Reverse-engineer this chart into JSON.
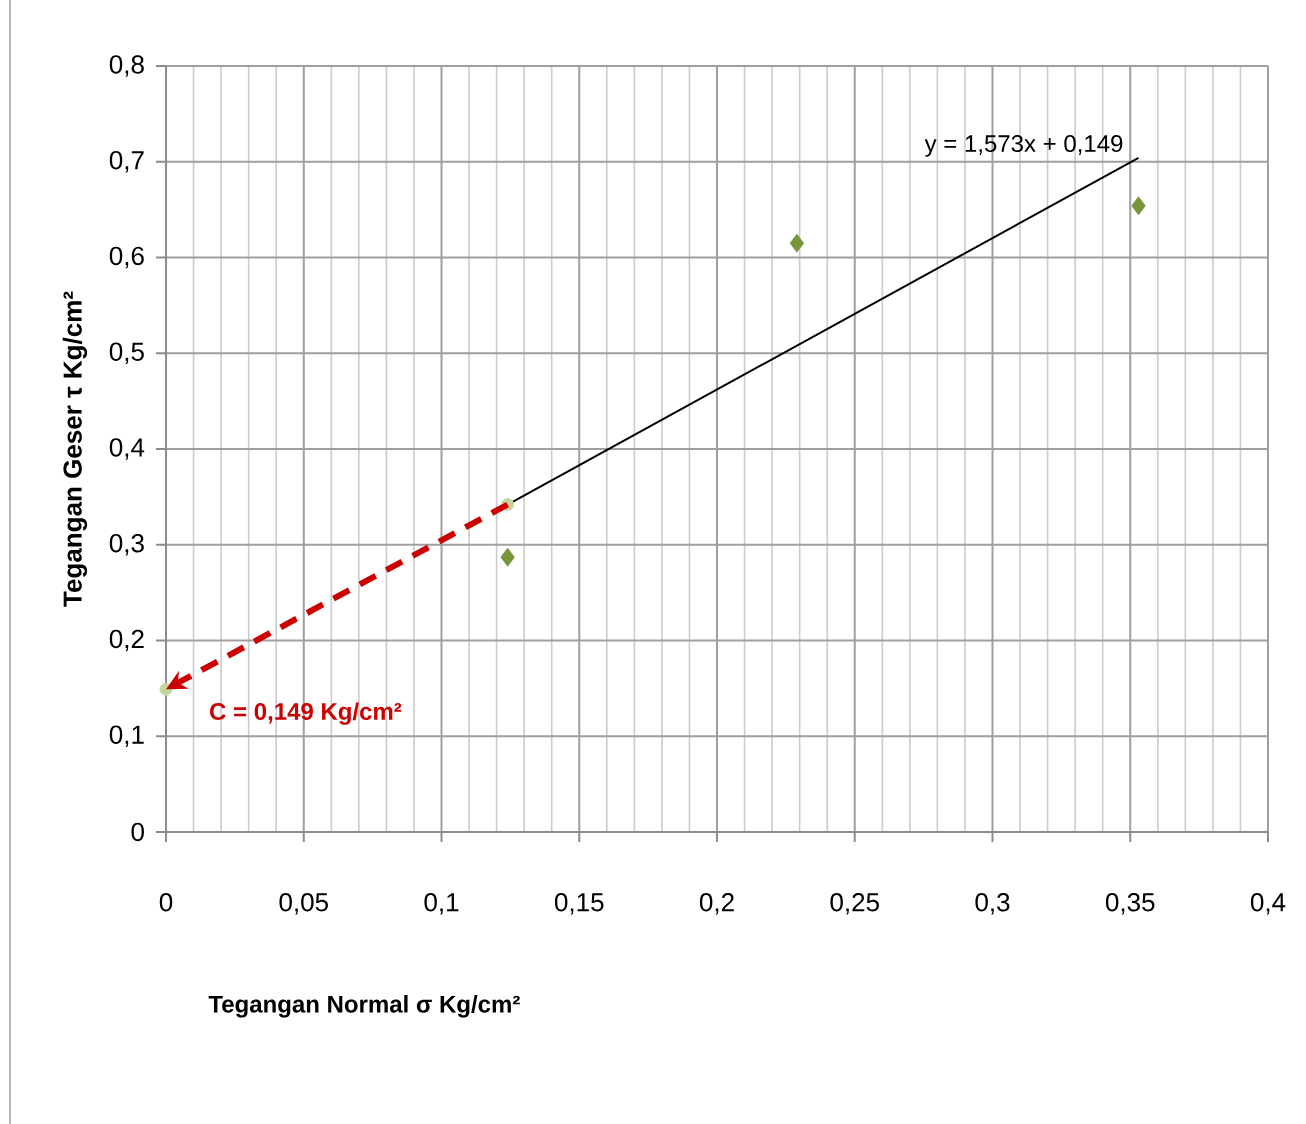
{
  "chart_data": {
    "type": "scatter",
    "xlabel": "Tegangan Normal  σ Kg/cm²",
    "ylabel": "Tegangan Geser   τ Kg/cm²",
    "xlim": [
      0,
      0.4
    ],
    "ylim": [
      0,
      0.8
    ],
    "xticks": [
      {
        "value": 0,
        "label": "0"
      },
      {
        "value": 0.05,
        "label": "0,05"
      },
      {
        "value": 0.1,
        "label": "0,1"
      },
      {
        "value": 0.15,
        "label": "0,15"
      },
      {
        "value": 0.2,
        "label": "0,2"
      },
      {
        "value": 0.25,
        "label": "0,25"
      },
      {
        "value": 0.3,
        "label": "0,3"
      },
      {
        "value": 0.35,
        "label": "0,35"
      },
      {
        "value": 0.4,
        "label": "0,4"
      }
    ],
    "yticks": [
      {
        "value": 0,
        "label": "0"
      },
      {
        "value": 0.1,
        "label": "0,1"
      },
      {
        "value": 0.2,
        "label": "0,2"
      },
      {
        "value": 0.3,
        "label": "0,3"
      },
      {
        "value": 0.4,
        "label": "0,4"
      },
      {
        "value": 0.5,
        "label": "0,5"
      },
      {
        "value": 0.6,
        "label": "0,6"
      },
      {
        "value": 0.7,
        "label": "0,7"
      },
      {
        "value": 0.8,
        "label": "0,8"
      }
    ],
    "grid": true,
    "series": [
      {
        "type": "line",
        "color": "#000000",
        "x": [
          0.124,
          0.353
        ],
        "values": [
          0.342,
          0.704
        ],
        "marker": "none",
        "line_style": "solid"
      },
      {
        "color": "#c3d69b",
        "x": [
          0,
          0.124
        ],
        "values": [
          0.149,
          0.342
        ],
        "marker": "circle"
      },
      {
        "color": "#77963c",
        "x": [
          0.124,
          0.229,
          0.353
        ],
        "values": [
          0.287,
          0.615,
          0.654
        ],
        "marker": "diamond"
      }
    ],
    "annotations": [
      {
        "text": "y = 1,573x + 0,149",
        "x": 0.353,
        "y": 0.704
      },
      {
        "text": "C = 0,149 Kg/cm²",
        "x": 0,
        "y": 0.149
      }
    ]
  }
}
